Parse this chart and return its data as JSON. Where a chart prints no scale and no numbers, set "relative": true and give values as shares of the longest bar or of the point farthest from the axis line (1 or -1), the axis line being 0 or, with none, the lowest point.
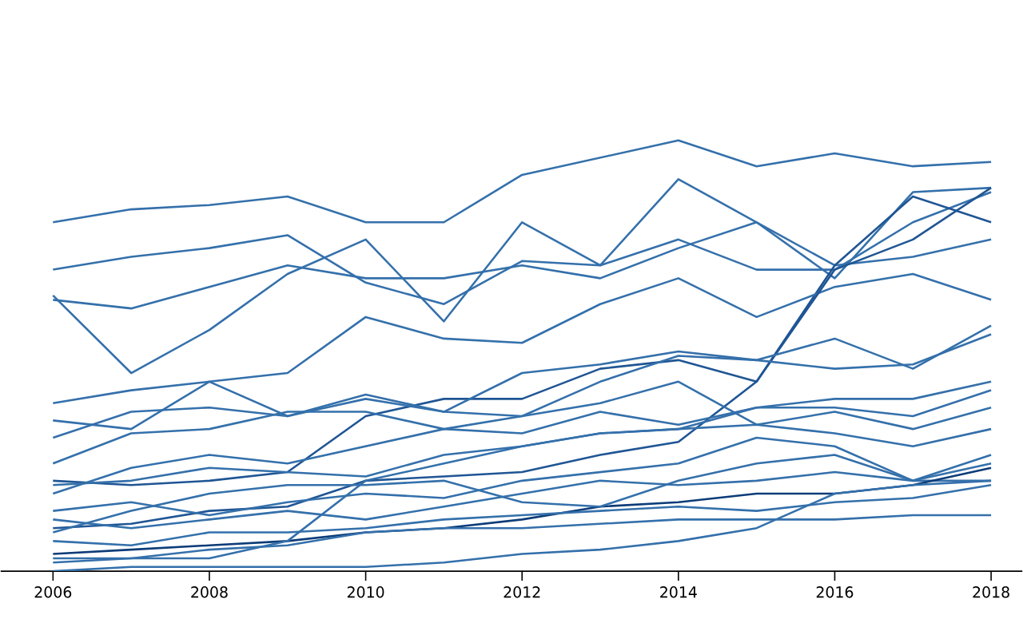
{
  "chart_data": {
    "type": "line",
    "relative": true,
    "x": [
      2006,
      2007,
      2008,
      2009,
      2010,
      2011,
      2012,
      2013,
      2014,
      2015,
      2016,
      2017,
      2018
    ],
    "xlim": [
      2005.33,
      2018.4
    ],
    "xticks": [
      2006,
      2008,
      2010,
      2012,
      2014,
      2016,
      2018
    ],
    "grid": false,
    "marker": "none",
    "line_style": "solid",
    "tick_labels": "x",
    "series": [
      {
        "color": "#3470ab",
        "values": [
          0.81,
          0.84,
          0.85,
          0.87,
          0.81,
          0.81,
          0.92,
          0.96,
          1,
          0.94,
          0.97,
          0.94,
          0.95
        ]
      },
      {
        "color": "#3470ab",
        "values": [
          0.7,
          0.73,
          0.75,
          0.78,
          0.67,
          0.62,
          0.72,
          0.71,
          0.77,
          0.7,
          0.7,
          0.81,
          0.88
        ]
      },
      {
        "color": "#3470ab",
        "values": [
          0.63,
          0.61,
          0.66,
          0.71,
          0.68,
          0.68,
          0.71,
          0.68,
          0.75,
          0.81,
          0.71,
          0.73,
          0.77
        ]
      },
      {
        "color": "#3470ab",
        "values": [
          0.64,
          0.46,
          0.56,
          0.69,
          0.77,
          0.58,
          0.81,
          0.71,
          0.91,
          0.81,
          0.68,
          0.88,
          0.89
        ]
      },
      {
        "color": "#1f5594",
        "values": [
          0.21,
          0.2,
          0.21,
          0.23,
          0.36,
          0.4,
          0.4,
          0.47,
          0.49,
          0.44,
          0.71,
          0.87,
          0.81
        ]
      },
      {
        "color": "#3470ab",
        "values": [
          0.39,
          0.42,
          0.44,
          0.46,
          0.59,
          0.54,
          0.53,
          0.62,
          0.68,
          0.59,
          0.66,
          0.69,
          0.63
        ]
      },
      {
        "color": "#1f5594",
        "values": [
          0.1,
          0.11,
          0.14,
          0.15,
          0.21,
          0.22,
          0.23,
          0.27,
          0.3,
          0.44,
          0.7,
          0.77,
          0.89
        ]
      },
      {
        "color": "#3470ab",
        "values": [
          0.35,
          0.33,
          0.44,
          0.36,
          0.4,
          0.37,
          0.46,
          0.48,
          0.51,
          0.49,
          0.47,
          0.48,
          0.55
        ]
      },
      {
        "color": "#3470ab",
        "values": [
          0.31,
          0.37,
          0.38,
          0.36,
          0.41,
          0.37,
          0.36,
          0.44,
          0.5,
          0.49,
          0.54,
          0.47,
          0.57
        ]
      },
      {
        "color": "#3470ab",
        "values": [
          0.25,
          0.32,
          0.33,
          0.37,
          0.37,
          0.33,
          0.32,
          0.37,
          0.34,
          0.38,
          0.4,
          0.4,
          0.44
        ]
      },
      {
        "color": "#3470ab",
        "values": [
          0.18,
          0.24,
          0.27,
          0.25,
          0.29,
          0.33,
          0.36,
          0.39,
          0.44,
          0.34,
          0.37,
          0.33,
          0.38
        ]
      },
      {
        "color": "#3470ab",
        "values": [
          0.2,
          0.21,
          0.24,
          0.23,
          0.22,
          0.27,
          0.29,
          0.32,
          0.33,
          0.34,
          0.32,
          0.29,
          0.33
        ]
      },
      {
        "color": "#3470ab",
        "values": [
          0.14,
          0.16,
          0.13,
          0.16,
          0.18,
          0.17,
          0.21,
          0.23,
          0.25,
          0.31,
          0.29,
          0.21,
          0.27
        ]
      },
      {
        "color": "#3470ab",
        "values": [
          0.12,
          0.1,
          0.12,
          0.14,
          0.12,
          0.15,
          0.18,
          0.21,
          0.2,
          0.21,
          0.23,
          0.21,
          0.21
        ]
      },
      {
        "color": "#0c3c78",
        "values": [
          0.04,
          0.05,
          0.06,
          0.07,
          0.09,
          0.1,
          0.12,
          0.15,
          0.16,
          0.18,
          0.18,
          0.2,
          0.24
        ]
      },
      {
        "color": "#3470ab",
        "values": [
          0.07,
          0.06,
          0.09,
          0.09,
          0.1,
          0.12,
          0.13,
          0.14,
          0.15,
          0.14,
          0.16,
          0.17,
          0.2
        ]
      },
      {
        "color": "#3470ab",
        "values": [
          0.02,
          0.03,
          0.03,
          0.07,
          0.21,
          0.25,
          0.29,
          0.32,
          0.33,
          0.38,
          0.38,
          0.36,
          0.42
        ]
      },
      {
        "color": "#3470ab",
        "values": [
          0.0,
          0.01,
          0.01,
          0.01,
          0.01,
          0.02,
          0.04,
          0.05,
          0.07,
          0.1,
          0.18,
          0.2,
          0.21
        ]
      },
      {
        "color": "#3470ab",
        "values": [
          0.03,
          0.03,
          0.05,
          0.06,
          0.09,
          0.1,
          0.1,
          0.11,
          0.12,
          0.12,
          0.12,
          0.13,
          0.13
        ]
      },
      {
        "color": "#3470ab",
        "values": [
          0.09,
          0.14,
          0.18,
          0.2,
          0.2,
          0.21,
          0.16,
          0.15,
          0.21,
          0.25,
          0.27,
          0.21,
          0.25
        ]
      }
    ]
  }
}
